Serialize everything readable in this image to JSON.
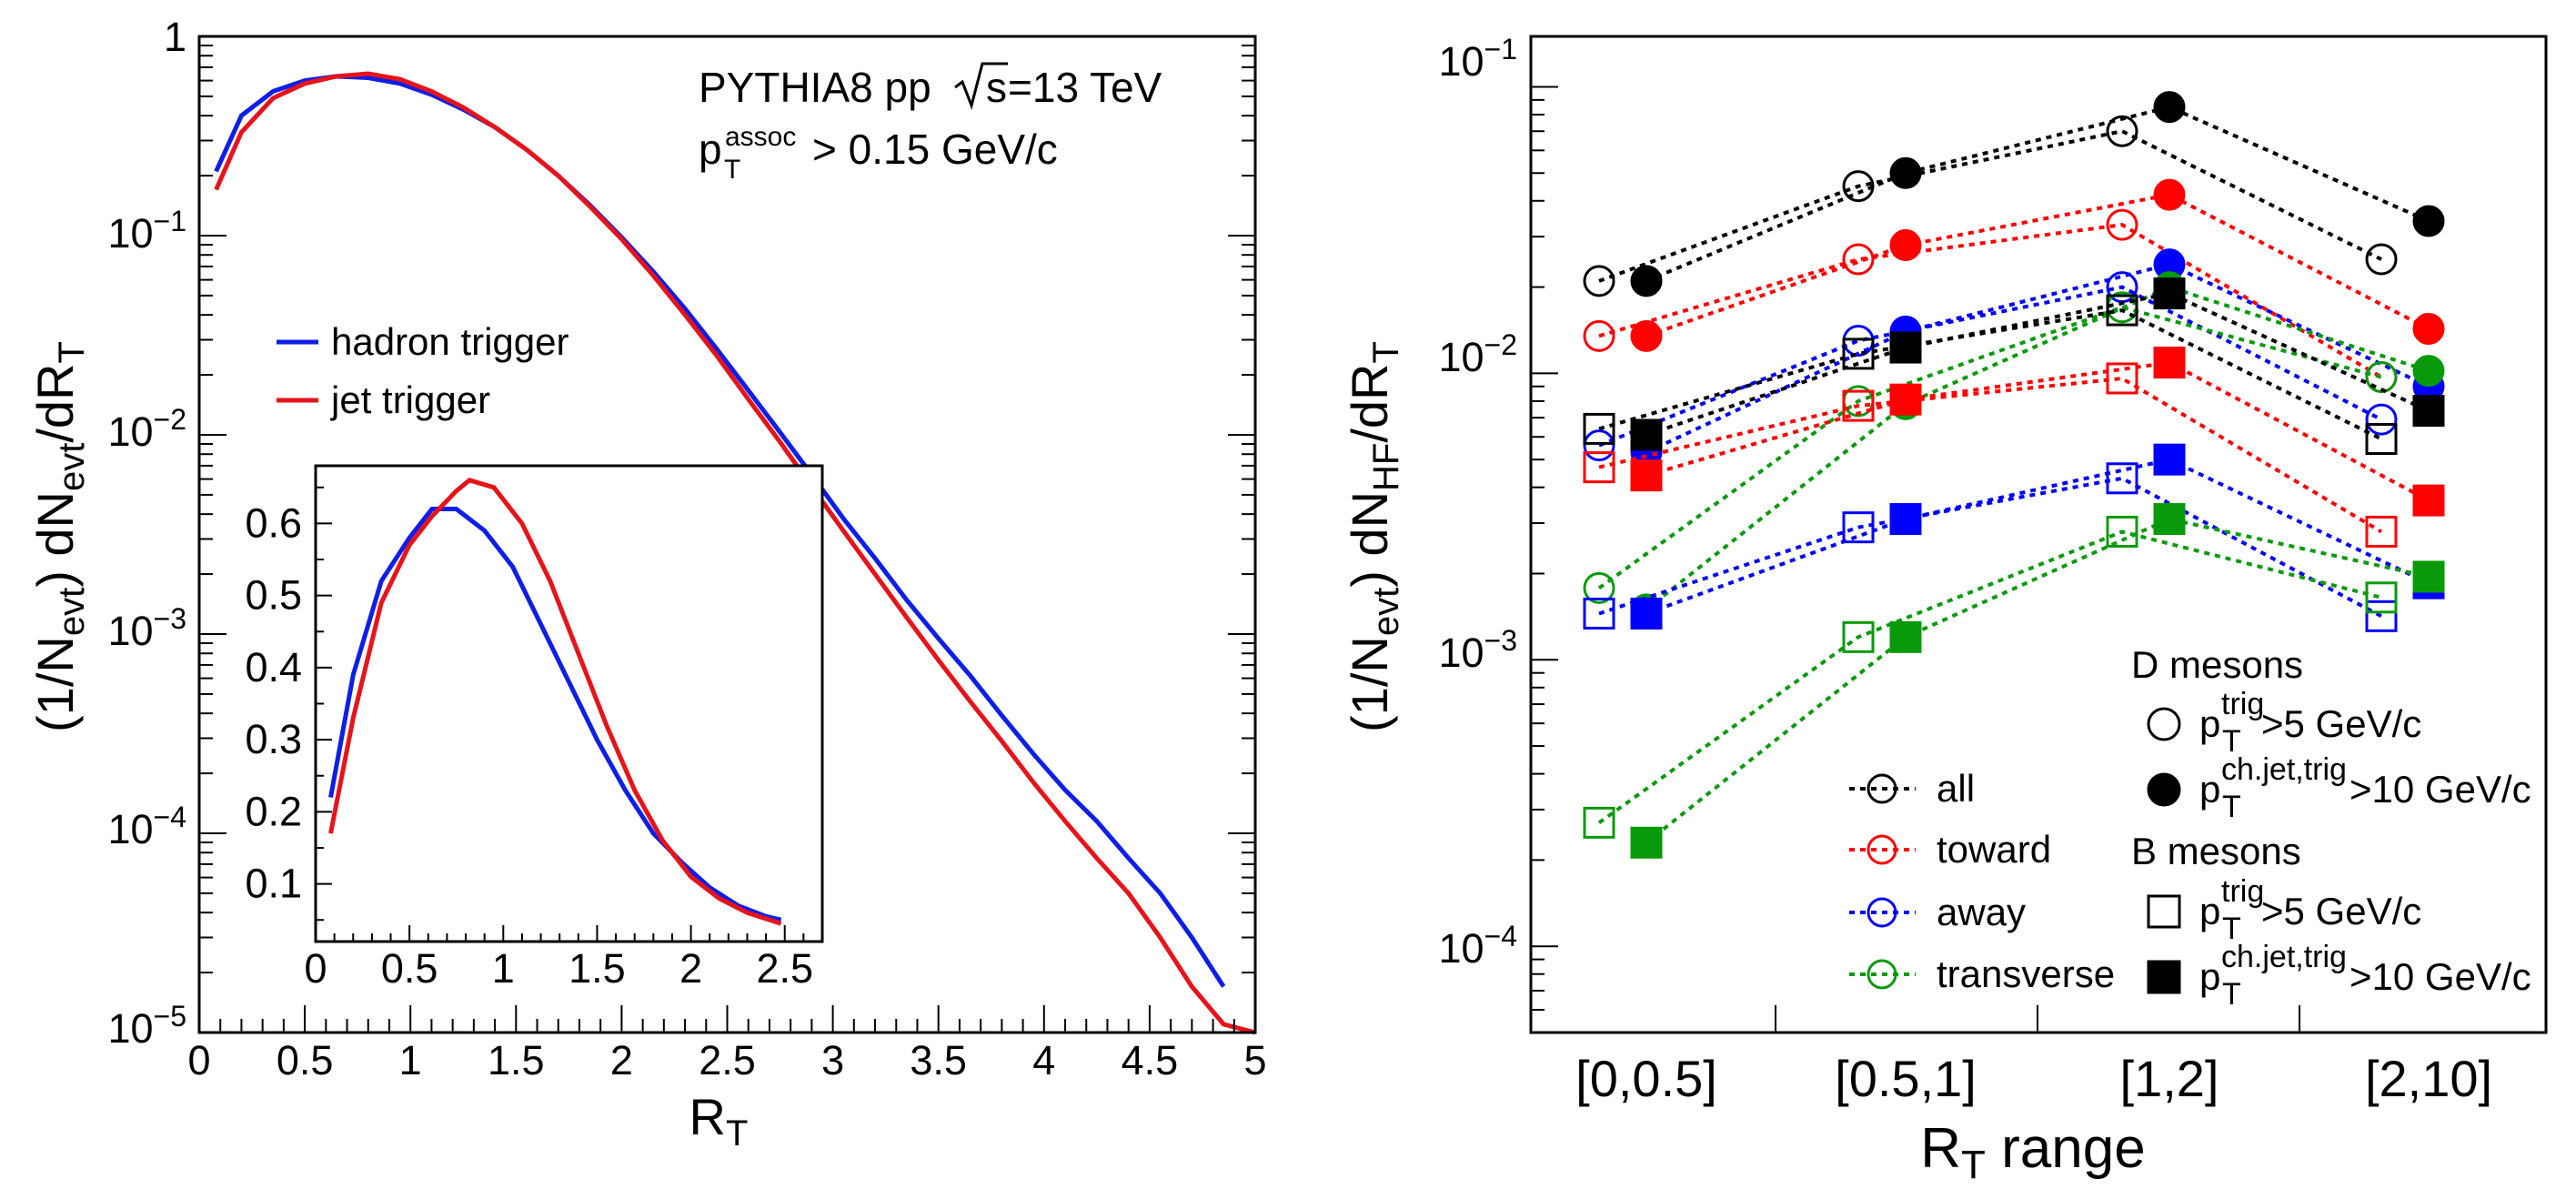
{
  "colors": {
    "hadron": "#0d1fe6",
    "jet": "#e6141a",
    "all": "#000000",
    "toward": "#ff0000",
    "away": "#0000ff",
    "transverse": "#099a0c"
  },
  "chart_data": [
    {
      "type": "line",
      "title": "",
      "xlabel": "R_T",
      "ylabel": "(1/N_evt) dN_evt/dR_T",
      "xlim": [
        0,
        5
      ],
      "ylim": [
        1e-05,
        1
      ],
      "yscale": "log",
      "x_ticks": [
        "0",
        "0.5",
        "1",
        "1.5",
        "2",
        "2.5",
        "3",
        "3.5",
        "4",
        "4.5",
        "5"
      ],
      "annotations": [
        "PYTHIA8 pp",
        "=13 TeV",
        "> 0.15 GeV/c"
      ],
      "series": [
        {
          "name": "hadron trigger",
          "color_key": "hadron",
          "x": [
            0.08,
            0.2,
            0.35,
            0.5,
            0.65,
            0.8,
            0.95,
            1.1,
            1.25,
            1.4,
            1.55,
            1.7,
            1.85,
            2.0,
            2.15,
            2.3,
            2.45,
            2.6,
            2.75,
            2.9,
            3.05,
            3.2,
            3.35,
            3.5,
            3.65,
            3.8,
            3.95,
            4.1,
            4.25,
            4.4,
            4.55,
            4.7,
            4.85
          ],
          "y": [
            0.21,
            0.4,
            0.53,
            0.6,
            0.63,
            0.62,
            0.58,
            0.51,
            0.43,
            0.35,
            0.27,
            0.2,
            0.142,
            0.098,
            0.066,
            0.043,
            0.027,
            0.0167,
            0.0103,
            0.0063,
            0.0038,
            0.0024,
            0.00148,
            0.00095,
            0.00062,
            0.00039,
            0.00025,
            0.000165,
            0.000115,
            7.5e-05,
            5e-05,
            3e-05,
            1.7e-05
          ]
        },
        {
          "name": "jet trigger",
          "color_key": "jet",
          "x": [
            0.08,
            0.2,
            0.35,
            0.5,
            0.65,
            0.8,
            0.95,
            1.1,
            1.25,
            1.4,
            1.55,
            1.7,
            1.85,
            2.0,
            2.15,
            2.3,
            2.45,
            2.6,
            2.75,
            2.9,
            3.05,
            3.2,
            3.35,
            3.5,
            3.65,
            3.8,
            3.95,
            4.1,
            4.25,
            4.4,
            4.55,
            4.7,
            4.85,
            5.0
          ],
          "y": [
            0.17,
            0.33,
            0.49,
            0.58,
            0.63,
            0.65,
            0.61,
            0.53,
            0.44,
            0.35,
            0.27,
            0.2,
            0.14,
            0.096,
            0.063,
            0.04,
            0.025,
            0.0151,
            0.0092,
            0.0055,
            0.0033,
            0.002,
            0.00121,
            0.00074,
            0.00046,
            0.00029,
            0.00018,
            0.000115,
            7.5e-05,
            5e-05,
            3e-05,
            1.7e-05,
            1.1e-05,
            8e-06
          ]
        }
      ],
      "inset": {
        "xlim": [
          0,
          2.7
        ],
        "ylim": [
          0.02,
          0.68
        ],
        "x_ticks": [
          "0",
          "0.5",
          "1",
          "1.5",
          "2",
          "2.5"
        ],
        "y_ticks": [
          "0.1",
          "0.2",
          "0.3",
          "0.4",
          "0.5",
          "0.6"
        ],
        "series": [
          {
            "name": "hadron trigger",
            "color_key": "hadron",
            "x": [
              0.08,
              0.2,
              0.35,
              0.5,
              0.62,
              0.75,
              0.9,
              1.05,
              1.2,
              1.35,
              1.5,
              1.65,
              1.8,
              1.95,
              2.1,
              2.25,
              2.4,
              2.48
            ],
            "y": [
              0.22,
              0.39,
              0.52,
              0.58,
              0.62,
              0.62,
              0.59,
              0.54,
              0.46,
              0.38,
              0.3,
              0.23,
              0.17,
              0.13,
              0.095,
              0.07,
              0.055,
              0.05
            ]
          },
          {
            "name": "jet trigger",
            "color_key": "jet",
            "x": [
              0.08,
              0.2,
              0.35,
              0.5,
              0.62,
              0.75,
              0.82,
              0.95,
              1.1,
              1.25,
              1.4,
              1.55,
              1.7,
              1.85,
              2.0,
              2.15,
              2.3,
              2.48
            ],
            "y": [
              0.17,
              0.33,
              0.49,
              0.57,
              0.61,
              0.645,
              0.66,
              0.65,
              0.6,
              0.52,
              0.42,
              0.32,
              0.23,
              0.16,
              0.11,
              0.08,
              0.06,
              0.045
            ]
          }
        ]
      }
    },
    {
      "type": "scatter",
      "title": "",
      "xlabel": "R_T range",
      "ylabel": "(1/N_evt) dN_HF/dR_T",
      "categories": [
        "[0,0.5]",
        "[0.5,1]",
        "[1,2]",
        "[2,10]"
      ],
      "ylim": [
        5e-05,
        0.15
      ],
      "yscale": "log",
      "regions": [
        "all",
        "toward",
        "away",
        "transverse"
      ],
      "series": [
        {
          "name": "D all, pT trig > 5 GeV/c",
          "meson": "D",
          "trigger": "hadron",
          "color_key": "all",
          "values": [
            0.021,
            0.045,
            0.07,
            0.025
          ]
        },
        {
          "name": "D all, pT ch.jet,trig > 10 GeV/c",
          "meson": "D",
          "trigger": "jet",
          "color_key": "all",
          "values": [
            0.021,
            0.05,
            0.085,
            0.034
          ]
        },
        {
          "name": "D toward, pT trig > 5 GeV/c",
          "meson": "D",
          "trigger": "hadron",
          "color_key": "toward",
          "values": [
            0.0135,
            0.025,
            0.033,
            0.0097
          ]
        },
        {
          "name": "D toward, pT ch.jet,trig > 10 GeV/c",
          "meson": "D",
          "trigger": "jet",
          "color_key": "toward",
          "values": [
            0.0135,
            0.028,
            0.042,
            0.0143
          ]
        },
        {
          "name": "D away, pT trig > 5 GeV/c",
          "meson": "D",
          "trigger": "hadron",
          "color_key": "away",
          "values": [
            0.0056,
            0.013,
            0.02,
            0.0069
          ]
        },
        {
          "name": "D away, pT ch.jet,trig > 10 GeV/c",
          "meson": "D",
          "trigger": "jet",
          "color_key": "away",
          "values": [
            0.0053,
            0.014,
            0.024,
            0.009
          ]
        },
        {
          "name": "D transverse, pT trig > 5 GeV/c",
          "meson": "D",
          "trigger": "hadron",
          "color_key": "transverse",
          "values": [
            0.00178,
            0.008,
            0.017,
            0.0097
          ]
        },
        {
          "name": "D transverse, pT ch.jet,trig > 10 GeV/c",
          "meson": "D",
          "trigger": "jet",
          "color_key": "transverse",
          "values": [
            0.0015,
            0.0078,
            0.02,
            0.0102
          ]
        },
        {
          "name": "B all, pT trig > 5 GeV/c",
          "meson": "B",
          "trigger": "hadron",
          "color_key": "all",
          "values": [
            0.0064,
            0.0117,
            0.0166,
            0.0059
          ]
        },
        {
          "name": "B all, pT ch.jet,trig > 10 GeV/c",
          "meson": "B",
          "trigger": "jet",
          "color_key": "all",
          "values": [
            0.0061,
            0.0123,
            0.019,
            0.0074
          ]
        },
        {
          "name": "B toward, pT trig > 5 GeV/c",
          "meson": "B",
          "trigger": "hadron",
          "color_key": "toward",
          "values": [
            0.0047,
            0.0077,
            0.0096,
            0.0028
          ]
        },
        {
          "name": "B toward, pT ch.jet,trig > 10 GeV/c",
          "meson": "B",
          "trigger": "jet",
          "color_key": "toward",
          "values": [
            0.0044,
            0.0081,
            0.0109,
            0.0036
          ]
        },
        {
          "name": "B away, pT trig > 5 GeV/c",
          "meson": "B",
          "trigger": "hadron",
          "color_key": "away",
          "values": [
            0.00145,
            0.0029,
            0.0043,
            0.00142
          ]
        },
        {
          "name": "B away, pT ch.jet,trig > 10 GeV/c",
          "meson": "B",
          "trigger": "jet",
          "color_key": "away",
          "values": [
            0.00145,
            0.0031,
            0.005,
            0.00185
          ]
        },
        {
          "name": "B transverse, pT trig > 5 GeV/c",
          "meson": "B",
          "trigger": "hadron",
          "color_key": "transverse",
          "values": [
            0.00027,
            0.0012,
            0.0028,
            0.00165
          ]
        },
        {
          "name": "B transverse, pT ch.jet,trig > 10 GeV/c",
          "meson": "B",
          "trigger": "jet",
          "color_key": "transverse",
          "values": [
            0.00023,
            0.0012,
            0.0031,
            0.00195
          ]
        }
      ],
      "legend": {
        "regions": [
          "all",
          "toward",
          "away",
          "transverse"
        ],
        "d_mesons_title": "D mesons",
        "b_mesons_title": "B mesons",
        "trig5": ">5 GeV/c",
        "trig10": ">10 GeV/c",
        "sup_trig": "trig",
        "sup_jet": "ch.jet,trig"
      }
    }
  ]
}
